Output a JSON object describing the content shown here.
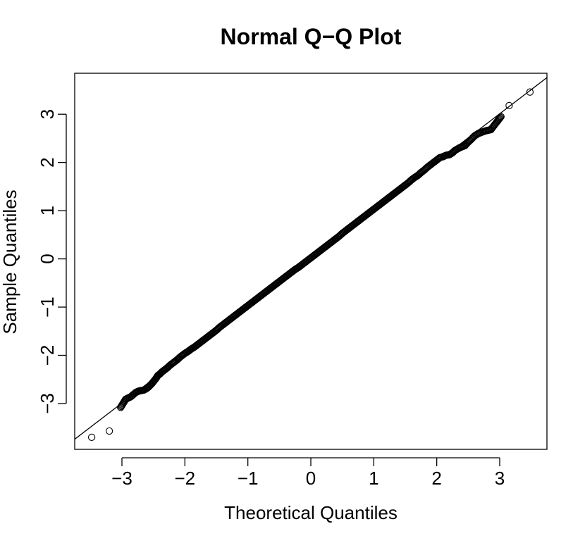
{
  "chart_data": {
    "type": "scatter",
    "title": "Normal Q−Q Plot",
    "xlabel": "Theoretical Quantiles",
    "ylabel": "Sample Quantiles",
    "xlim": [
      -3.75,
      3.75
    ],
    "ylim": [
      -3.95,
      3.85
    ],
    "x_ticks": [
      -3,
      -2,
      -1,
      0,
      1,
      2,
      3
    ],
    "x_tick_labels": [
      "−3",
      "−2",
      "−1",
      "0",
      "1",
      "2",
      "3"
    ],
    "y_ticks": [
      -3,
      -2,
      -1,
      0,
      1,
      2,
      3
    ],
    "y_tick_labels": [
      "−3",
      "−2",
      "−1",
      "0",
      "1",
      "2",
      "3"
    ],
    "grid": false,
    "reference_line": {
      "intercept": 0.01,
      "slope": 1.0
    },
    "marker": "open-circle",
    "colors": {
      "points": "#000000",
      "line": "#000000",
      "axes": "#000000"
    },
    "points": {
      "x": [
        -3.48,
        -3.2,
        -3.02,
        -2.94,
        -2.86,
        -2.78,
        -2.73,
        -2.69,
        -2.65,
        -2.61,
        -2.58,
        -2.55,
        -2.52,
        -2.49,
        -2.46,
        -2.43,
        -2.4,
        -2.36,
        -2.32,
        -2.28,
        -2.24,
        -2.2,
        -2.16,
        -2.12,
        -2.08,
        -2.04,
        -2.0,
        -1.95,
        -1.9,
        -1.85,
        -1.8,
        -1.75,
        -1.7,
        -1.65,
        -1.6,
        -1.55,
        -1.5,
        -1.45,
        -1.4,
        -1.35,
        -1.3,
        -1.25,
        -1.2,
        -1.15,
        -1.1,
        -1.05,
        -1.0,
        -0.95,
        -0.9,
        -0.85,
        -0.8,
        -0.75,
        -0.7,
        -0.65,
        -0.6,
        -0.55,
        -0.5,
        -0.45,
        -0.4,
        -0.35,
        -0.3,
        -0.25,
        -0.2,
        -0.15,
        -0.1,
        -0.05,
        0.0,
        0.05,
        0.1,
        0.15,
        0.2,
        0.25,
        0.3,
        0.35,
        0.4,
        0.45,
        0.5,
        0.55,
        0.6,
        0.65,
        0.7,
        0.75,
        0.8,
        0.85,
        0.9,
        0.95,
        1.0,
        1.05,
        1.1,
        1.15,
        1.2,
        1.25,
        1.3,
        1.35,
        1.4,
        1.45,
        1.5,
        1.55,
        1.6,
        1.65,
        1.7,
        1.75,
        1.8,
        1.85,
        1.9,
        1.95,
        2.0,
        2.05,
        2.1,
        2.15,
        2.2,
        2.25,
        2.29,
        2.33,
        2.37,
        2.41,
        2.45,
        2.49,
        2.54,
        2.6,
        2.66,
        2.72,
        2.79,
        2.86,
        2.93,
        3.02,
        3.15,
        3.48
      ],
      "y": [
        -3.7,
        -3.57,
        -3.08,
        -2.91,
        -2.86,
        -2.77,
        -2.74,
        -2.73,
        -2.72,
        -2.69,
        -2.66,
        -2.62,
        -2.58,
        -2.53,
        -2.48,
        -2.42,
        -2.39,
        -2.34,
        -2.3,
        -2.26,
        -2.21,
        -2.17,
        -2.13,
        -2.09,
        -2.04,
        -2.0,
        -1.96,
        -1.92,
        -1.87,
        -1.83,
        -1.78,
        -1.73,
        -1.68,
        -1.63,
        -1.58,
        -1.53,
        -1.48,
        -1.42,
        -1.37,
        -1.32,
        -1.27,
        -1.22,
        -1.17,
        -1.12,
        -1.07,
        -1.02,
        -0.97,
        -0.92,
        -0.87,
        -0.82,
        -0.77,
        -0.72,
        -0.67,
        -0.62,
        -0.57,
        -0.52,
        -0.47,
        -0.42,
        -0.37,
        -0.32,
        -0.27,
        -0.22,
        -0.18,
        -0.13,
        -0.08,
        -0.03,
        0.02,
        0.07,
        0.12,
        0.17,
        0.22,
        0.27,
        0.32,
        0.37,
        0.42,
        0.47,
        0.53,
        0.58,
        0.63,
        0.68,
        0.73,
        0.78,
        0.83,
        0.88,
        0.93,
        0.98,
        1.03,
        1.08,
        1.13,
        1.18,
        1.23,
        1.28,
        1.33,
        1.38,
        1.43,
        1.48,
        1.53,
        1.58,
        1.64,
        1.69,
        1.73,
        1.79,
        1.84,
        1.9,
        1.95,
        2.0,
        2.05,
        2.1,
        2.12,
        2.15,
        2.16,
        2.2,
        2.25,
        2.28,
        2.31,
        2.33,
        2.35,
        2.41,
        2.47,
        2.55,
        2.6,
        2.63,
        2.66,
        2.68,
        2.8,
        2.95,
        3.18,
        3.46
      ]
    }
  }
}
